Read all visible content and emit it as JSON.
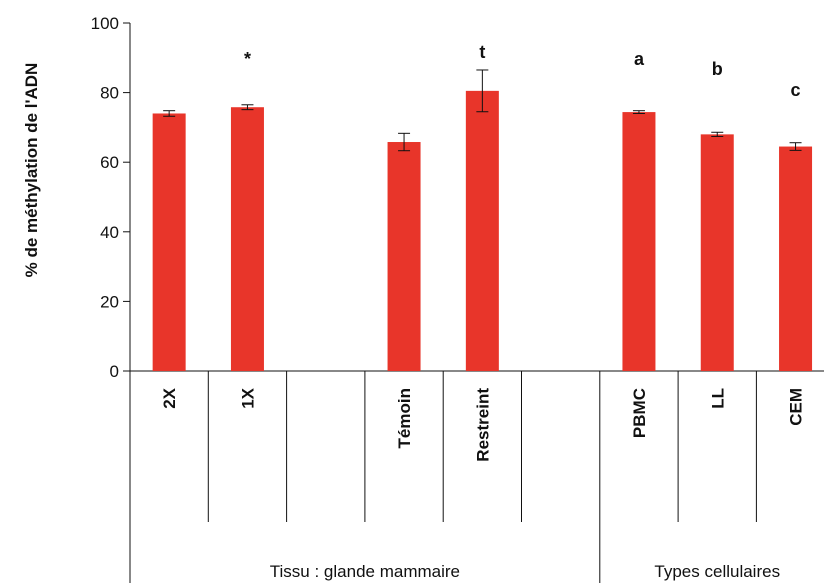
{
  "chart_data": {
    "type": "bar",
    "ylabel": "% de méthylation de l'ADN",
    "ylim": [
      0,
      100
    ],
    "yticks": [
      "0",
      "20",
      "40",
      "60",
      "80",
      "100"
    ],
    "grid": false,
    "bar_color": "#e8352a",
    "categories": [
      "2X",
      "1X",
      "",
      "Témoin",
      "Restreint",
      "",
      "PBMC",
      "LL",
      "CEM"
    ],
    "values": [
      74.0,
      75.8,
      null,
      65.8,
      80.5,
      null,
      74.4,
      68.0,
      64.5
    ],
    "errors": [
      0.8,
      0.7,
      null,
      2.5,
      6.0,
      null,
      0.4,
      0.6,
      1.1
    ],
    "annotations": [
      {
        "text": "*",
        "category_index": 1,
        "value": 88
      },
      {
        "text": "t",
        "category_index": 4,
        "value": 90
      },
      {
        "text": "a",
        "category_index": 6,
        "value": 88
      },
      {
        "text": "b",
        "category_index": 7,
        "value": 85
      },
      {
        "text": "c",
        "category_index": 8,
        "value": 79
      }
    ],
    "groups": [
      {
        "label": "Tissu : glande mammaire",
        "start_index": 0,
        "end_index": 5
      },
      {
        "label": "Types cellulaires",
        "start_index": 6,
        "end_index": 8
      }
    ]
  }
}
